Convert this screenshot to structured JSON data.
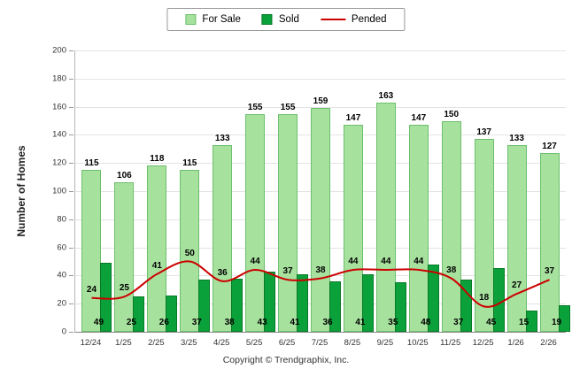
{
  "chart_data": {
    "type": "bar",
    "title": "",
    "categories": [
      "12/24",
      "1/25",
      "2/25",
      "3/25",
      "4/25",
      "5/25",
      "6/25",
      "7/25",
      "8/25",
      "9/25",
      "10/25",
      "11/25",
      "12/25",
      "1/26",
      "2/26"
    ],
    "series": [
      {
        "name": "For Sale",
        "type": "bar",
        "color": "#a7e19e",
        "border": "#6cc06c",
        "values": [
          115,
          106,
          118,
          115,
          133,
          155,
          155,
          159,
          147,
          163,
          147,
          150,
          137,
          133,
          127
        ]
      },
      {
        "name": "Sold",
        "type": "bar",
        "color": "#0aa13b",
        "border": "#087a26",
        "values": [
          49,
          25,
          26,
          37,
          38,
          43,
          41,
          36,
          41,
          35,
          48,
          37,
          45,
          15,
          19
        ]
      },
      {
        "name": "Pended",
        "type": "line",
        "color": "#cc0000",
        "values": [
          24,
          25,
          41,
          50,
          36,
          44,
          37,
          38,
          44,
          44,
          44,
          38,
          18,
          27,
          37
        ]
      }
    ],
    "xlabel": "",
    "ylabel": "Number of Homes",
    "ylim": [
      0,
      200
    ],
    "yticks": [
      0,
      20,
      40,
      60,
      80,
      100,
      120,
      140,
      160,
      180,
      200
    ],
    "grid": true,
    "legend_position": "top"
  },
  "footer": {
    "copyright": "Copyright © Trendgraphix, Inc."
  }
}
